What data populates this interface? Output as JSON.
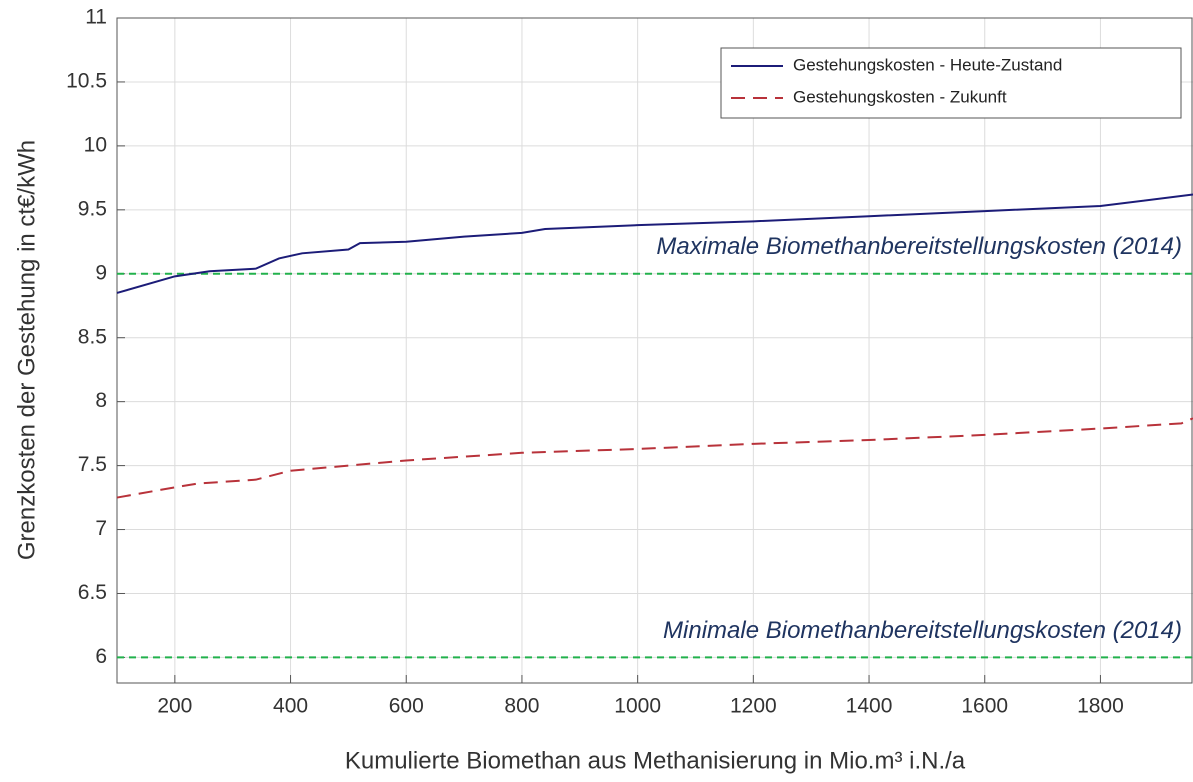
{
  "chart_data": {
    "type": "line",
    "x_label": "Kumulierte Biomethan aus Methanisierung in Mio.m³ i.N./a",
    "y_label": "Grenzkosten der Gestehung in ct€/kWh",
    "xlim": [
      100,
      1960
    ],
    "ylim": [
      5.8,
      11
    ],
    "xticks": [
      200,
      400,
      600,
      800,
      1000,
      1200,
      1400,
      1600,
      1800
    ],
    "yticks": [
      6,
      6.5,
      7,
      7.5,
      8,
      8.5,
      9,
      9.5,
      10,
      10.5,
      11
    ],
    "grid": true,
    "legend": "upper right",
    "series": [
      {
        "name": "Gestehungskosten - Heute-Zustand",
        "color": "#1c1c78",
        "dash": "solid",
        "x": [
          100,
          200,
          260,
          340,
          380,
          420,
          500,
          520,
          600,
          700,
          800,
          840,
          1000,
          1200,
          1400,
          1600,
          1800,
          1960
        ],
        "values": [
          8.85,
          8.98,
          9.02,
          9.04,
          9.12,
          9.16,
          9.19,
          9.24,
          9.25,
          9.29,
          9.32,
          9.35,
          9.38,
          9.41,
          9.45,
          9.49,
          9.53,
          9.62
        ]
      },
      {
        "name": "Gestehungskosten - Zukunft",
        "color": "#b8323a",
        "dash": "dashed",
        "x": [
          100,
          200,
          240,
          340,
          400,
          500,
          600,
          800,
          1000,
          1200,
          1400,
          1600,
          1800,
          1940,
          1960
        ],
        "values": [
          7.25,
          7.33,
          7.36,
          7.39,
          7.46,
          7.5,
          7.54,
          7.6,
          7.63,
          7.67,
          7.7,
          7.74,
          7.79,
          7.83,
          7.87
        ]
      }
    ],
    "reference_lines": [
      {
        "value": 9,
        "label": "Maximale Biomethanbereitstellungskosten (2014)",
        "color": "#22b14c"
      },
      {
        "value": 6,
        "label": "Minimale Biomethanbereitstellungskosten (2014)",
        "color": "#22b14c"
      }
    ]
  }
}
